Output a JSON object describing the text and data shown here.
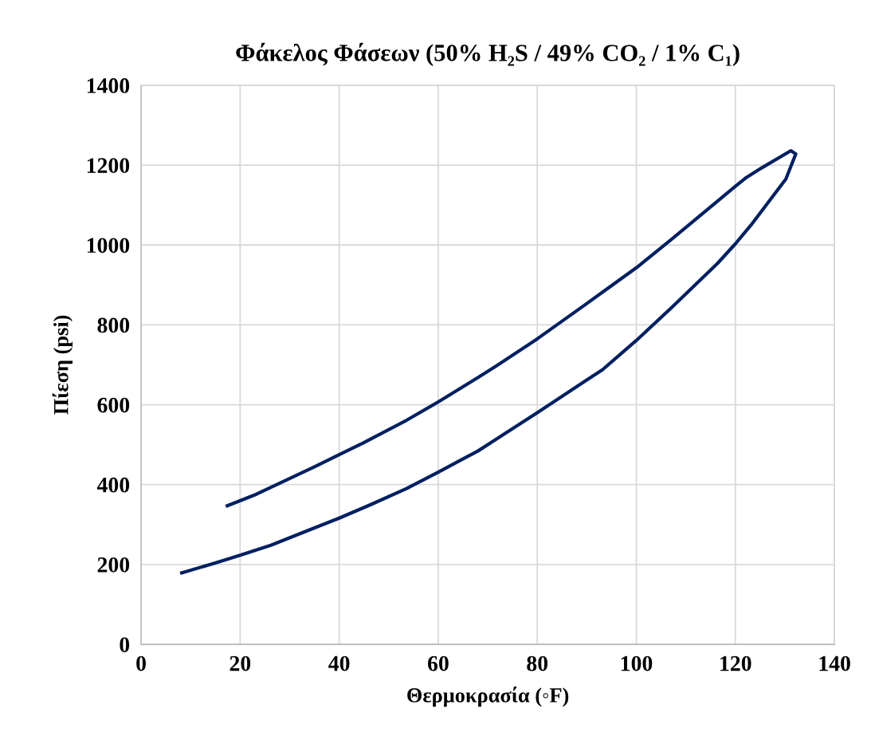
{
  "chart_data": {
    "type": "line",
    "title": "Φάκελος Φάσεων (50% H₂S / 49% CO₂ / 1% C₁)",
    "xlabel": "Θερμοκρασία (◦F)",
    "ylabel": "Πίεση (psi)",
    "series": [
      {
        "color": "#002060",
        "x": [
          17.4,
          23.3,
          35.1,
          40,
          44.8,
          53.6,
          60,
          62.5,
          68.0,
          71.7,
          80,
          89.5,
          100,
          107.2,
          120,
          122,
          125.3,
          131.2,
          132.2,
          130.2,
          125.3,
          123.1,
          120,
          116.4,
          107.2,
          100,
          93.2,
          89.5,
          80,
          71.4,
          68,
          64.8,
          60,
          53.6,
          46.2,
          40,
          35.1,
          26.2,
          20,
          15.1,
          8.2
        ],
        "values": [
          347,
          376,
          445,
          475,
          504,
          561,
          607,
          626,
          668,
          697,
          765,
          849,
          943,
          1015,
          1147,
          1167,
          1193,
          1236,
          1228,
          1165,
          1085,
          1049,
          1003,
          954,
          844,
          761,
          688,
          658,
          580,
          511,
          484,
          463,
          431,
          390,
          349,
          316,
          292,
          248,
          223,
          204,
          179
        ]
      }
    ],
    "xlim": [
      0,
      140
    ],
    "xticks": [
      0,
      20,
      40,
      60,
      80,
      100,
      120,
      140
    ],
    "ylim": [
      0,
      1400
    ],
    "yticks": [
      0,
      200,
      400,
      600,
      800,
      1000,
      1200,
      1400
    ],
    "grid": true,
    "marker": "none",
    "line_style": "solid"
  }
}
